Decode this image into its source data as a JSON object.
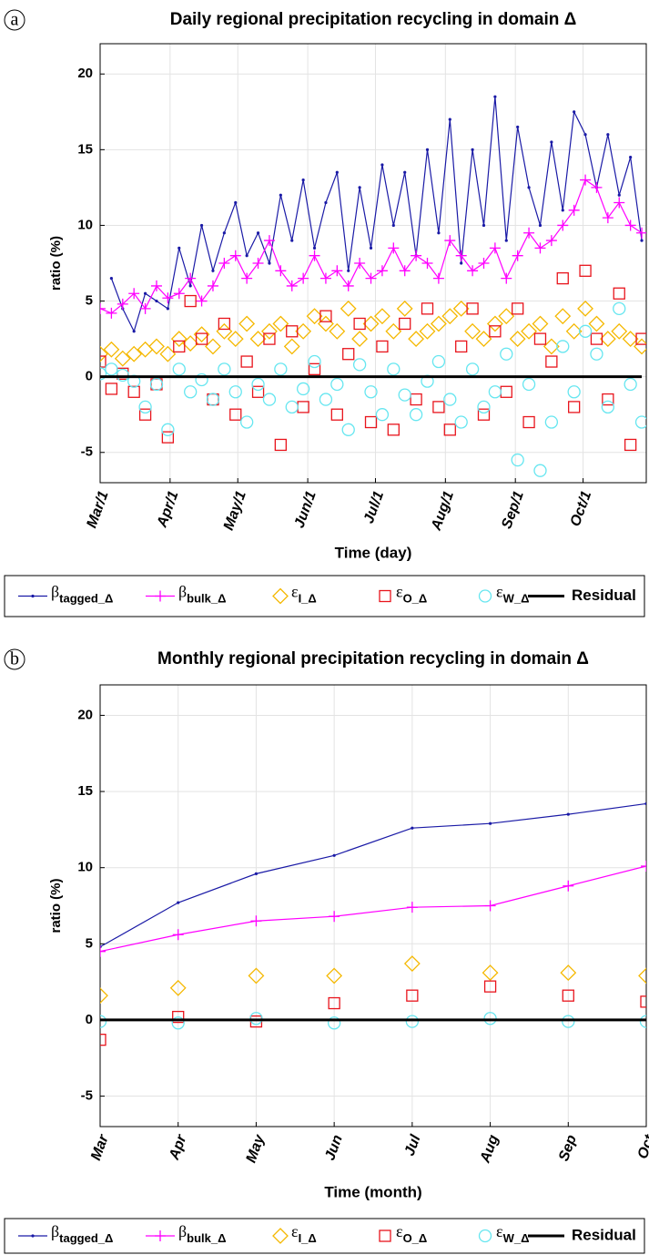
{
  "chart_data": [
    {
      "type": "line",
      "panel_label": "a",
      "title": "Daily regional precipitation recycling in domain Δ",
      "xlabel": "Time (day)",
      "ylabel": "ratio (%)",
      "x": [
        0,
        5,
        10,
        15,
        20,
        25,
        30,
        35,
        40,
        45,
        50,
        55,
        60,
        65,
        70,
        75,
        80,
        85,
        90,
        95,
        100,
        105,
        110,
        115,
        120,
        125,
        130,
        135,
        140,
        145,
        150,
        155,
        160,
        165,
        170,
        175,
        180,
        185,
        190,
        195,
        200,
        205,
        210,
        215,
        220,
        225,
        230,
        235,
        240
      ],
      "xlim": [
        0,
        242
      ],
      "xticks": [
        {
          "value": 0,
          "label": "Mar/1"
        },
        {
          "value": 31,
          "label": "Apr/1"
        },
        {
          "value": 61,
          "label": "May/1"
        },
        {
          "value": 92,
          "label": "Jun/1"
        },
        {
          "value": 122,
          "label": "Jul/1"
        },
        {
          "value": 153,
          "label": "Aug/1"
        },
        {
          "value": 184,
          "label": "Sep/1"
        },
        {
          "value": 214,
          "label": "Oct/1"
        }
      ],
      "ylim": [
        -7,
        22
      ],
      "yticks": [
        -5,
        0,
        5,
        10,
        15,
        20
      ],
      "grid": true,
      "series": [
        {
          "symbol": "β",
          "subscript": "tagged_Δ",
          "color": "#1a1aa6",
          "line": true,
          "marker": "dot",
          "values": [
            null,
            6.5,
            4.5,
            3.0,
            5.5,
            5.0,
            4.5,
            8.5,
            6.0,
            10.0,
            7.0,
            9.5,
            11.5,
            8.0,
            9.5,
            7.5,
            12.0,
            9.0,
            13.0,
            8.5,
            11.5,
            13.5,
            7.0,
            12.5,
            8.5,
            14.0,
            10.0,
            13.5,
            8.0,
            15.0,
            9.5,
            17.0,
            7.5,
            15.0,
            10.0,
            18.5,
            9.0,
            16.5,
            12.5,
            10.0,
            15.5,
            11.0,
            17.5,
            16.0,
            12.5,
            16.0,
            12.0,
            14.5,
            9.0
          ]
        },
        {
          "symbol": "β",
          "subscript": "bulk_Δ",
          "color": "#ff00ff",
          "line": true,
          "marker": "plus",
          "values": [
            4.5,
            4.2,
            4.8,
            5.5,
            4.5,
            6.0,
            5.2,
            5.5,
            6.5,
            5.0,
            6.0,
            7.5,
            8.0,
            6.5,
            7.5,
            9.0,
            7.0,
            6.0,
            6.5,
            8.0,
            6.5,
            7.0,
            6.0,
            7.5,
            6.5,
            7.0,
            8.5,
            7.0,
            8.0,
            7.5,
            6.5,
            9.0,
            8.0,
            7.0,
            7.5,
            8.5,
            6.5,
            8.0,
            9.5,
            8.5,
            9.0,
            10.0,
            11.0,
            13.0,
            12.5,
            10.5,
            11.5,
            10.0,
            9.5
          ]
        },
        {
          "symbol": "ε",
          "subscript": "I_Δ",
          "color": "#f5b800",
          "line": false,
          "marker": "diamond",
          "values": [
            1.5,
            1.8,
            1.2,
            1.5,
            1.8,
            2.0,
            1.5,
            2.5,
            2.2,
            2.8,
            2.0,
            3.0,
            2.5,
            3.5,
            2.5,
            3.0,
            3.5,
            2.0,
            3.0,
            4.0,
            3.5,
            3.0,
            4.5,
            2.5,
            3.5,
            4.0,
            3.0,
            4.5,
            2.5,
            3.0,
            3.5,
            4.0,
            4.5,
            3.0,
            2.5,
            3.5,
            4.0,
            2.5,
            3.0,
            3.5,
            2.0,
            4.0,
            3.0,
            4.5,
            3.5,
            2.5,
            3.0,
            2.5,
            2.0
          ]
        },
        {
          "symbol": "ε",
          "subscript": "O_Δ",
          "color": "#e8141c",
          "line": false,
          "marker": "square",
          "values": [
            1.0,
            -0.8,
            0.2,
            -1.0,
            -2.5,
            -0.5,
            -4.0,
            2.0,
            5.0,
            2.5,
            -1.5,
            3.5,
            -2.5,
            1.0,
            -1.0,
            2.5,
            -4.5,
            3.0,
            -2.0,
            0.5,
            4.0,
            -2.5,
            1.5,
            3.5,
            -3.0,
            2.0,
            -3.5,
            3.5,
            -1.5,
            4.5,
            -2.0,
            -3.5,
            2.0,
            4.5,
            -2.5,
            3.0,
            -1.0,
            4.5,
            -3.0,
            2.5,
            1.0,
            6.5,
            -2.0,
            7.0,
            2.5,
            -1.5,
            5.5,
            -4.5,
            2.5
          ]
        },
        {
          "symbol": "ε",
          "subscript": "W_Δ",
          "color": "#66e6f0",
          "line": false,
          "marker": "circle",
          "values": [
            0.2,
            0.5,
            0.1,
            -0.3,
            -2.0,
            -0.5,
            -3.5,
            0.5,
            -1.0,
            -0.2,
            -1.5,
            0.5,
            -1.0,
            -3.0,
            -0.5,
            -1.5,
            0.5,
            -2.0,
            -0.8,
            1.0,
            -1.5,
            -0.5,
            -3.5,
            0.8,
            -1.0,
            -2.5,
            0.5,
            -1.2,
            -2.5,
            -0.3,
            1.0,
            -1.5,
            -3.0,
            0.5,
            -2.0,
            -1.0,
            1.5,
            -5.5,
            -0.5,
            -6.2,
            -3.0,
            2.0,
            -1.0,
            3.0,
            1.5,
            -2.0,
            4.5,
            -0.5,
            -3.0
          ]
        },
        {
          "name": "Residual",
          "color": "#000000",
          "line": true,
          "marker": "none",
          "values": [
            0,
            0,
            0,
            0,
            0,
            0,
            0,
            0,
            0,
            0,
            0,
            0,
            0,
            0,
            0,
            0,
            0,
            0,
            0,
            0,
            0,
            0,
            0,
            0,
            0,
            0,
            0,
            0,
            0,
            0,
            0,
            0,
            0,
            0,
            0,
            0,
            0,
            0,
            0,
            0,
            0,
            0,
            0,
            0,
            0,
            0,
            0,
            0,
            0
          ]
        }
      ]
    },
    {
      "type": "line",
      "panel_label": "b",
      "title": "Monthly regional precipitation recycling in domain Δ",
      "xlabel": "Time (month)",
      "ylabel": "ratio (%)",
      "categories": [
        "Mar",
        "Apr",
        "May",
        "Jun",
        "Jul",
        "Aug",
        "Sep",
        "Oct"
      ],
      "ylim": [
        -7,
        22
      ],
      "yticks": [
        -5,
        0,
        5,
        10,
        15,
        20
      ],
      "grid": true,
      "series": [
        {
          "symbol": "β",
          "subscript": "tagged_Δ",
          "color": "#1a1aa6",
          "line": true,
          "marker": "dot",
          "values": [
            4.8,
            7.7,
            9.6,
            10.8,
            12.6,
            12.9,
            13.5,
            14.2
          ]
        },
        {
          "symbol": "β",
          "subscript": "bulk_Δ",
          "color": "#ff00ff",
          "line": true,
          "marker": "plus",
          "values": [
            4.5,
            5.6,
            6.5,
            6.8,
            7.4,
            7.5,
            8.8,
            10.1
          ]
        },
        {
          "symbol": "ε",
          "subscript": "I_Δ",
          "color": "#f5b800",
          "line": false,
          "marker": "diamond",
          "values": [
            1.6,
            2.1,
            2.9,
            2.9,
            3.7,
            3.1,
            3.1,
            2.9
          ]
        },
        {
          "symbol": "ε",
          "subscript": "O_Δ",
          "color": "#e8141c",
          "line": false,
          "marker": "square",
          "values": [
            -1.3,
            0.2,
            -0.1,
            1.1,
            1.6,
            2.2,
            1.6,
            1.2
          ]
        },
        {
          "symbol": "ε",
          "subscript": "W_Δ",
          "color": "#66e6f0",
          "line": false,
          "marker": "circle",
          "values": [
            -0.1,
            -0.2,
            0.1,
            -0.2,
            -0.1,
            0.1,
            -0.1,
            -0.1
          ]
        },
        {
          "name": "Residual",
          "color": "#000000",
          "line": true,
          "marker": "none",
          "values": [
            0,
            0,
            0,
            0,
            0,
            0,
            0,
            0
          ]
        }
      ]
    }
  ]
}
